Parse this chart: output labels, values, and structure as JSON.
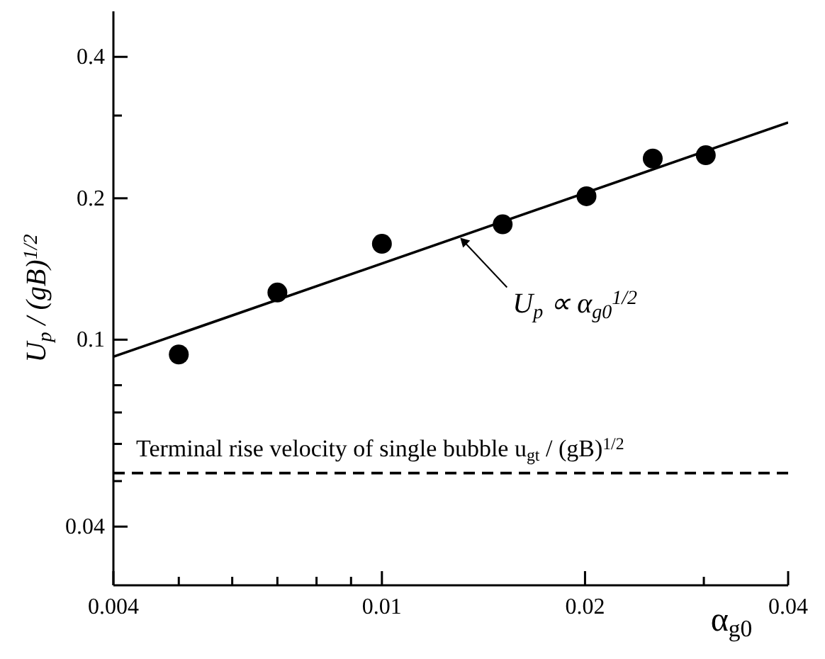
{
  "chart_data": {
    "type": "scatter",
    "xlabel": "α$_{g0}$",
    "ylabel": "U$_{p}$ / (gB)$^{1/2}$",
    "log": "xy",
    "grid": false,
    "legend": false,
    "xlim": [
      0.004,
      0.04
    ],
    "ylim": [
      0.03,
      0.5
    ],
    "xticks": [
      0.004,
      {
        "value": 0.005,
        "label": null
      },
      {
        "value": 0.006,
        "label": null
      },
      {
        "value": 0.007,
        "label": null
      },
      {
        "value": 0.008,
        "label": null
      },
      {
        "value": 0.009,
        "label": null
      },
      0.01,
      0.02,
      {
        "value": 0.03,
        "label": null
      },
      0.04
    ],
    "yticks": [
      0.04,
      {
        "value": 0.05,
        "label": null
      },
      {
        "value": 0.06,
        "label": null
      },
      {
        "value": 0.07,
        "label": null
      },
      {
        "value": 0.08,
        "label": null
      },
      0.1,
      0.2,
      {
        "value": 0.3,
        "label": null
      },
      0.4
    ],
    "series": [
      {
        "color": "#000000",
        "marker": "circle",
        "x": [
          0.005,
          0.007,
          0.01,
          0.0151,
          0.0201,
          0.0252,
          0.0302
        ],
        "values": [
          0.093,
          0.126,
          0.16,
          0.176,
          0.202,
          0.243,
          0.247
        ]
      },
      {
        "type": "line",
        "color": "#000000",
        "line_style": "solid",
        "marker": "none",
        "x": [
          0.004,
          0.04
        ],
        "values": [
          0.092,
          0.29
        ]
      }
    ],
    "ref_lines": [
      {
        "axis": "y",
        "value": 0.052,
        "label": "Terminal rise velocity of single bubble  u$_{gt}$ / (gB)$^{1/2}$",
        "line_style": "dashed",
        "color": "#000000"
      }
    ],
    "annotations": [
      {
        "text": "U$_{p}$ ∝ α$_{g0}$$^{1/2}$",
        "x": 0.013,
        "y": 0.166
      }
    ]
  }
}
